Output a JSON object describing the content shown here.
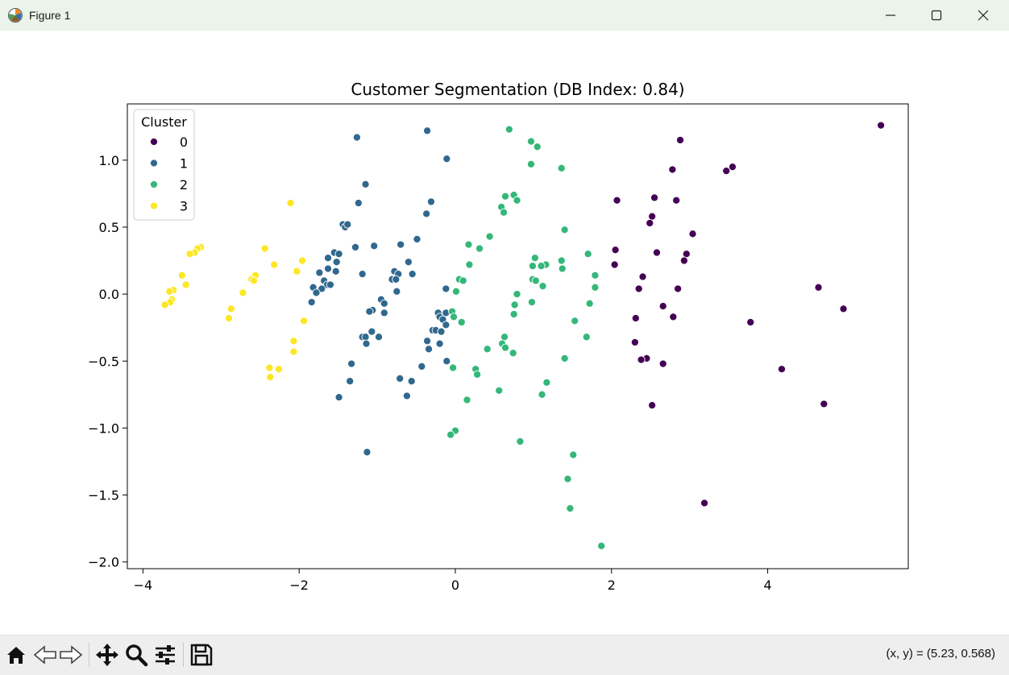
{
  "window": {
    "title": "Figure 1",
    "controls": [
      "minimize",
      "maximize",
      "close"
    ]
  },
  "toolbar": {
    "buttons": [
      "home-icon",
      "back-icon",
      "forward-icon",
      "pan-icon",
      "zoom-icon",
      "configure-subplots-icon",
      "save-icon"
    ],
    "coords_text": "(x, y) = (5.23, 0.568)"
  },
  "chart_data": {
    "type": "scatter",
    "title": "Customer Segmentation (DB Index: 0.84)",
    "xlabel": "",
    "ylabel": "",
    "xlim": [
      -4.2,
      5.8
    ],
    "ylim": [
      -2.05,
      1.42
    ],
    "xticks": [
      -4,
      -2,
      0,
      2,
      4
    ],
    "xtick_labels": [
      "−4",
      "−2",
      "0",
      "2",
      "4"
    ],
    "yticks": [
      -2.0,
      -1.5,
      -1.0,
      -0.5,
      0.0,
      0.5,
      1.0
    ],
    "ytick_labels": [
      "−2.0",
      "−1.5",
      "−1.0",
      "−0.5",
      "0.0",
      "0.5",
      "1.0"
    ],
    "grid": false,
    "legend": {
      "title": "Cluster",
      "placement": "top-left"
    },
    "series": [
      {
        "name": "0",
        "color": "#440154",
        "points": [
          [
            5.45,
            1.26
          ],
          [
            2.88,
            1.15
          ],
          [
            3.55,
            0.95
          ],
          [
            3.47,
            0.92
          ],
          [
            2.78,
            0.93
          ],
          [
            2.07,
            0.7
          ],
          [
            2.55,
            0.72
          ],
          [
            2.83,
            0.7
          ],
          [
            2.52,
            0.58
          ],
          [
            2.49,
            0.53
          ],
          [
            3.04,
            0.45
          ],
          [
            2.05,
            0.33
          ],
          [
            2.58,
            0.31
          ],
          [
            2.96,
            0.3
          ],
          [
            2.93,
            0.25
          ],
          [
            2.04,
            0.22
          ],
          [
            2.4,
            0.13
          ],
          [
            2.35,
            0.04
          ],
          [
            2.85,
            0.04
          ],
          [
            4.65,
            0.05
          ],
          [
            2.66,
            -0.09
          ],
          [
            4.97,
            -0.11
          ],
          [
            2.79,
            -0.17
          ],
          [
            2.31,
            -0.18
          ],
          [
            3.78,
            -0.21
          ],
          [
            2.3,
            -0.36
          ],
          [
            2.45,
            -0.48
          ],
          [
            2.38,
            -0.49
          ],
          [
            2.66,
            -0.52
          ],
          [
            4.18,
            -0.56
          ],
          [
            2.52,
            -0.83
          ],
          [
            4.72,
            -0.82
          ],
          [
            3.19,
            -1.56
          ]
        ]
      },
      {
        "name": "1",
        "color": "#31688e",
        "points": [
          [
            -1.26,
            1.17
          ],
          [
            -0.36,
            1.22
          ],
          [
            -0.11,
            1.01
          ],
          [
            -1.15,
            0.82
          ],
          [
            -1.24,
            0.68
          ],
          [
            -0.31,
            0.69
          ],
          [
            -0.37,
            0.6
          ],
          [
            -1.44,
            0.52
          ],
          [
            -1.41,
            0.5
          ],
          [
            -1.38,
            0.52
          ],
          [
            -0.49,
            0.41
          ],
          [
            -0.7,
            0.37
          ],
          [
            -1.04,
            0.36
          ],
          [
            -1.28,
            0.35
          ],
          [
            -1.55,
            0.31
          ],
          [
            -1.49,
            0.3
          ],
          [
            -1.63,
            0.27
          ],
          [
            -1.52,
            0.24
          ],
          [
            -0.6,
            0.24
          ],
          [
            -1.63,
            0.19
          ],
          [
            -1.53,
            0.17
          ],
          [
            -0.78,
            0.17
          ],
          [
            -0.73,
            0.15
          ],
          [
            -1.74,
            0.16
          ],
          [
            -1.19,
            0.15
          ],
          [
            -0.55,
            0.15
          ],
          [
            -0.81,
            0.11
          ],
          [
            -0.76,
            0.11
          ],
          [
            -1.68,
            0.1
          ],
          [
            -1.64,
            0.07
          ],
          [
            -1.6,
            0.07
          ],
          [
            -1.82,
            0.05
          ],
          [
            -1.71,
            0.04
          ],
          [
            -0.12,
            0.04
          ],
          [
            -1.78,
            0.01
          ],
          [
            -0.75,
            0.02
          ],
          [
            -1.84,
            -0.06
          ],
          [
            -0.95,
            -0.04
          ],
          [
            -0.91,
            -0.07
          ],
          [
            -1.06,
            -0.12
          ],
          [
            -1.1,
            -0.13
          ],
          [
            -0.91,
            -0.14
          ],
          [
            -0.22,
            -0.14
          ],
          [
            -0.12,
            -0.14
          ],
          [
            -0.2,
            -0.17
          ],
          [
            -0.16,
            -0.19
          ],
          [
            -0.12,
            -0.23
          ],
          [
            -0.29,
            -0.27
          ],
          [
            -0.25,
            -0.27
          ],
          [
            -0.18,
            -0.28
          ],
          [
            -1.07,
            -0.28
          ],
          [
            -1.19,
            -0.32
          ],
          [
            -1.15,
            -0.32
          ],
          [
            -0.98,
            -0.32
          ],
          [
            -0.36,
            -0.35
          ],
          [
            -1.14,
            -0.37
          ],
          [
            -0.2,
            -0.37
          ],
          [
            -0.34,
            -0.41
          ],
          [
            -0.11,
            -0.5
          ],
          [
            -1.33,
            -0.52
          ],
          [
            -0.43,
            -0.54
          ],
          [
            -0.71,
            -0.63
          ],
          [
            -0.56,
            -0.65
          ],
          [
            -1.35,
            -0.65
          ],
          [
            -0.62,
            -0.76
          ],
          [
            -1.49,
            -0.77
          ],
          [
            -1.13,
            -1.18
          ]
        ]
      },
      {
        "name": "2",
        "color": "#35b779",
        "points": [
          [
            0.69,
            1.23
          ],
          [
            0.97,
            1.14
          ],
          [
            1.05,
            1.1
          ],
          [
            0.97,
            0.97
          ],
          [
            1.36,
            0.94
          ],
          [
            0.64,
            0.73
          ],
          [
            0.75,
            0.74
          ],
          [
            0.79,
            0.7
          ],
          [
            0.59,
            0.65
          ],
          [
            0.62,
            0.61
          ],
          [
            1.4,
            0.48
          ],
          [
            0.44,
            0.43
          ],
          [
            0.17,
            0.37
          ],
          [
            0.31,
            0.34
          ],
          [
            1.7,
            0.3
          ],
          [
            1.02,
            0.27
          ],
          [
            1.36,
            0.25
          ],
          [
            0.18,
            0.22
          ],
          [
            1.16,
            0.22
          ],
          [
            0.99,
            0.21
          ],
          [
            1.1,
            0.21
          ],
          [
            1.37,
            0.19
          ],
          [
            1.79,
            0.14
          ],
          [
            0.05,
            0.11
          ],
          [
            0.99,
            0.11
          ],
          [
            0.1,
            0.1
          ],
          [
            1.03,
            0.1
          ],
          [
            1.12,
            0.06
          ],
          [
            1.79,
            0.05
          ],
          [
            0.01,
            0.02
          ],
          [
            0.79,
            0.0
          ],
          [
            0.98,
            -0.06
          ],
          [
            1.72,
            -0.07
          ],
          [
            0.76,
            -0.08
          ],
          [
            -0.04,
            -0.13
          ],
          [
            0.75,
            -0.15
          ],
          [
            -0.02,
            -0.17
          ],
          [
            0.08,
            -0.21
          ],
          [
            1.53,
            -0.2
          ],
          [
            0.63,
            -0.32
          ],
          [
            1.68,
            -0.32
          ],
          [
            0.6,
            -0.37
          ],
          [
            0.64,
            -0.4
          ],
          [
            0.41,
            -0.41
          ],
          [
            0.74,
            -0.44
          ],
          [
            1.4,
            -0.48
          ],
          [
            -0.03,
            -0.55
          ],
          [
            0.26,
            -0.56
          ],
          [
            0.28,
            -0.6
          ],
          [
            1.17,
            -0.66
          ],
          [
            0.56,
            -0.72
          ],
          [
            1.11,
            -0.75
          ],
          [
            0.15,
            -0.79
          ],
          [
            0.0,
            -1.02
          ],
          [
            -0.06,
            -1.05
          ],
          [
            0.83,
            -1.1
          ],
          [
            1.51,
            -1.2
          ],
          [
            1.44,
            -1.38
          ],
          [
            1.47,
            -1.6
          ],
          [
            1.87,
            -1.88
          ]
        ]
      },
      {
        "name": "3",
        "color": "#fde725",
        "points": [
          [
            -2.11,
            0.68
          ],
          [
            -3.26,
            0.35
          ],
          [
            -3.3,
            0.34
          ],
          [
            -2.44,
            0.34
          ],
          [
            -3.34,
            0.31
          ],
          [
            -3.4,
            0.3
          ],
          [
            -1.96,
            0.25
          ],
          [
            -2.32,
            0.22
          ],
          [
            -2.03,
            0.17
          ],
          [
            -3.5,
            0.14
          ],
          [
            -2.56,
            0.14
          ],
          [
            -2.61,
            0.11
          ],
          [
            -2.58,
            0.1
          ],
          [
            -3.45,
            0.07
          ],
          [
            -3.61,
            0.03
          ],
          [
            -2.72,
            0.01
          ],
          [
            -3.66,
            0.02
          ],
          [
            -3.63,
            -0.04
          ],
          [
            -3.65,
            -0.06
          ],
          [
            -3.72,
            -0.08
          ],
          [
            -2.87,
            -0.11
          ],
          [
            -2.9,
            -0.18
          ],
          [
            -1.94,
            -0.2
          ],
          [
            -2.07,
            -0.35
          ],
          [
            -2.07,
            -0.43
          ],
          [
            -2.38,
            -0.55
          ],
          [
            -2.26,
            -0.56
          ],
          [
            -2.37,
            -0.62
          ]
        ]
      }
    ]
  }
}
